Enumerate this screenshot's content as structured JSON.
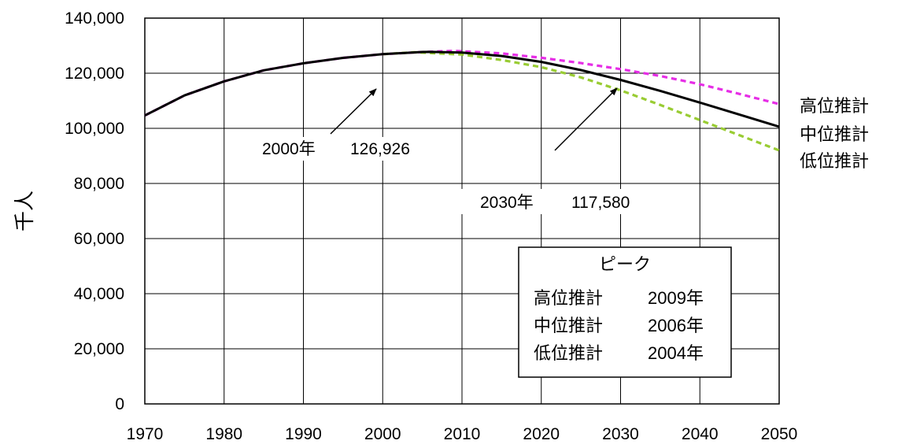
{
  "chart_data": {
    "type": "line",
    "title": "",
    "xlabel": "",
    "ylabel": "千人",
    "xlim": [
      1970,
      2050
    ],
    "ylim": [
      0,
      140000
    ],
    "x_ticks": [
      "1970",
      "1980",
      "1990",
      "2000",
      "2010",
      "2020",
      "2030",
      "2040",
      "2050"
    ],
    "y_ticks": [
      "0",
      "20,000",
      "40,000",
      "60,000",
      "80,000",
      "100,000",
      "120,000",
      "140,000"
    ],
    "grid": true,
    "series": [
      {
        "name": "高位推計",
        "color": "#e62ee6",
        "style": "dashed",
        "x": [
          1970,
          1975,
          1980,
          1985,
          1990,
          1995,
          2000,
          2005,
          2009,
          2015,
          2020,
          2025,
          2030,
          2035,
          2040,
          2045,
          2050
        ],
        "y": [
          104665,
          111940,
          117060,
          121049,
          123611,
          125570,
          126926,
          127700,
          128100,
          127200,
          125600,
          123700,
          121500,
          119000,
          116000,
          112500,
          108800
        ]
      },
      {
        "name": "中位推計",
        "color": "#000000",
        "style": "solid",
        "x": [
          1970,
          1975,
          1980,
          1985,
          1990,
          1995,
          2000,
          2005,
          2006,
          2010,
          2015,
          2020,
          2025,
          2030,
          2035,
          2040,
          2045,
          2050
        ],
        "y": [
          104665,
          111940,
          117060,
          121049,
          123611,
          125570,
          126926,
          127708,
          127741,
          127473,
          126266,
          124107,
          121136,
          117580,
          113602,
          109338,
          104960,
          100593
        ]
      },
      {
        "name": "低位推計",
        "color": "#99cc33",
        "style": "dashed",
        "x": [
          2000,
          2004,
          2010,
          2015,
          2020,
          2025,
          2030,
          2035,
          2040,
          2045,
          2050
        ],
        "y": [
          126926,
          127600,
          126800,
          124800,
          122200,
          118500,
          113800,
          108500,
          103000,
          97500,
          92000
        ]
      }
    ],
    "annotations": [
      {
        "text_year": "2000年",
        "text_value": "126,926",
        "point_x": 2000,
        "point_y": 126926
      },
      {
        "text_year": "2030年",
        "text_value": "117,580",
        "point_x": 2030,
        "point_y": 117580
      }
    ],
    "peak_box": {
      "title": "ピーク",
      "rows": [
        {
          "label": "高位推計",
          "year": "2009年"
        },
        {
          "label": "中位推計",
          "year": "2006年"
        },
        {
          "label": "低位推計",
          "year": "2004年"
        }
      ]
    }
  }
}
